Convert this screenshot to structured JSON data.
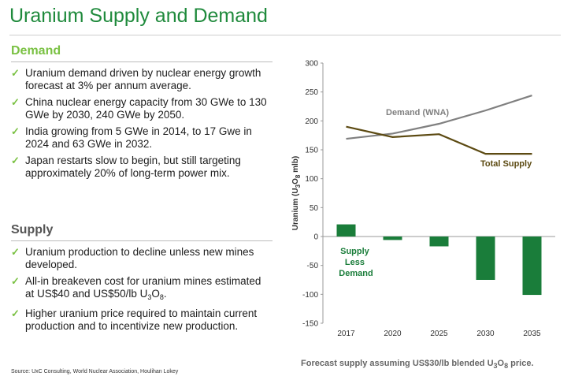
{
  "title": "Uranium Supply and Demand",
  "demand": {
    "heading": "Demand",
    "bullets": [
      {
        "text": "Uranium demand driven by nuclear energy growth forecast at 3% per annum average."
      },
      {
        "text": "China nuclear energy capacity from 30 GWe to 130 GWe by 2030, 240 GWe by 2050."
      },
      {
        "text": "India growing from 5 GWe in 2014, to 17 Gwe in 2024 and 63 GWe in 2032."
      },
      {
        "text": "Japan restarts slow to begin, but still targeting approximately 20% of long-term power mix."
      }
    ]
  },
  "supply": {
    "heading": "Supply",
    "bullets": [
      {
        "text": "Uranium production to decline unless new mines developed."
      },
      {
        "text": "All-in breakeven cost for uranium mines estimated at US$40 and US$50/lb U",
        "sub1": "3",
        "mid": "O",
        "sub2": "8",
        "tail": "."
      },
      {
        "text": "Higher uranium price required to maintain current production and to incentivize new production."
      }
    ]
  },
  "source": "Source: UxC Consulting, World Nuclear Association, Houlihan Lokey",
  "note": {
    "pre": "Forecast supply assuming US$30/lb blended U",
    "sub1": "3",
    "mid": "O",
    "sub2": "8",
    "post": " price."
  },
  "colors": {
    "accent": "#1f8a3c",
    "check": "#7ac143",
    "demand_line": "#808080",
    "supply_line": "#5c4a12",
    "bar": "#1a7d3a"
  },
  "chart_data": {
    "type": "bar",
    "categories": [
      "2017",
      "2020",
      "2025",
      "2030",
      "2035"
    ],
    "ylim": [
      -150,
      300
    ],
    "yticks": [
      -150,
      -100,
      -50,
      0,
      50,
      100,
      150,
      200,
      250,
      300
    ],
    "ylabel": {
      "pre": "Uranium (U",
      "sub1": "3",
      "mid": "O",
      "sub2": "8",
      "post": " mlb)"
    },
    "series": [
      {
        "name": "Supply Less Demand",
        "type": "bar",
        "values": [
          21,
          -6,
          -17,
          -75,
          -101
        ]
      },
      {
        "name": "Demand (WNA)",
        "type": "line",
        "values": [
          169,
          178,
          195,
          218,
          244
        ]
      },
      {
        "name": "Total Supply",
        "type": "line",
        "values": [
          190,
          172,
          177,
          143,
          143
        ]
      }
    ],
    "labels": {
      "bars": [
        "Supply",
        "Less",
        "Demand"
      ],
      "demand": "Demand (WNA)",
      "supply": "Total Supply"
    }
  }
}
